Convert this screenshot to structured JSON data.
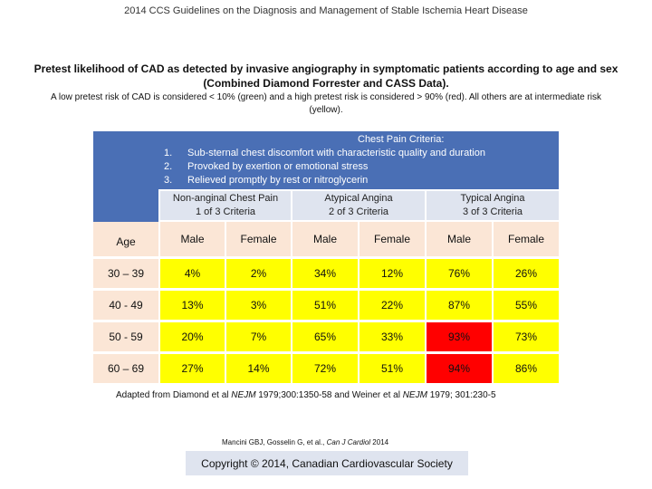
{
  "header": {
    "top_title": "2014 CCS Guidelines on the Diagnosis and Management of Stable Ischemia Heart Disease",
    "main_title": "Pretest likelihood of CAD as detected by invasive angiography in symptomatic patients according to age and sex (Combined Diamond Forrester and CASS Data).",
    "subtitle": "A low pretest risk of CAD is considered < 10% (green) and a high pretest risk is considered > 90% (red).  All others are at intermediate risk (yellow)."
  },
  "criteria": {
    "heading": "Chest Pain Criteria:",
    "items": [
      {
        "num": "1.",
        "text": "Sub-sternal chest discomfort with characteristic quality and duration"
      },
      {
        "num": "2.",
        "text": "Provoked by exertion or emotional stress"
      },
      {
        "num": "3.",
        "text": "Relieved promptly by rest or nitroglycerin"
      }
    ]
  },
  "groups": [
    {
      "line1": "Non-anginal Chest Pain",
      "line2": "1 of 3 Criteria"
    },
    {
      "line1": "Atypical Angina",
      "line2": "2 of 3 Criteria"
    },
    {
      "line1": "Typical Angina",
      "line2": "3 of 3 Criteria"
    }
  ],
  "table": {
    "age_label": "Age",
    "sex_labels": [
      "Male",
      "Female",
      "Male",
      "Female",
      "Male",
      "Female"
    ],
    "rows": [
      {
        "age": "30 – 39",
        "values": [
          "4%",
          "2%",
          "34%",
          "12%",
          "76%",
          "26%"
        ]
      },
      {
        "age": "40 - 49",
        "values": [
          "13%",
          "3%",
          "51%",
          "22%",
          "87%",
          "55%"
        ]
      },
      {
        "age": "50 - 59",
        "values": [
          "20%",
          "7%",
          "65%",
          "33%",
          "93%",
          "73%"
        ]
      },
      {
        "age": "60 – 69",
        "values": [
          "27%",
          "14%",
          "72%",
          "51%",
          "94%",
          "86%"
        ]
      }
    ]
  },
  "colors": {
    "intermediate": "#ffff00",
    "high": "#ff0000",
    "header_blue": "#4a6fb5"
  },
  "footer": {
    "adapted_prefix": "Adapted from Diamond et al ",
    "adapted_journal1": "NEJM",
    "adapted_mid": " 1979;300:1350-58 and Weiner et al ",
    "adapted_journal2": "NEJM",
    "adapted_suffix": " 1979; 301:230-5",
    "cite_prefix": "Mancini GBJ, Gosselin G, et al., ",
    "cite_journal": "Can J Cardiol",
    "cite_suffix": " 2014",
    "copyright": "Copyright © 2014, Canadian Cardiovascular Society"
  }
}
